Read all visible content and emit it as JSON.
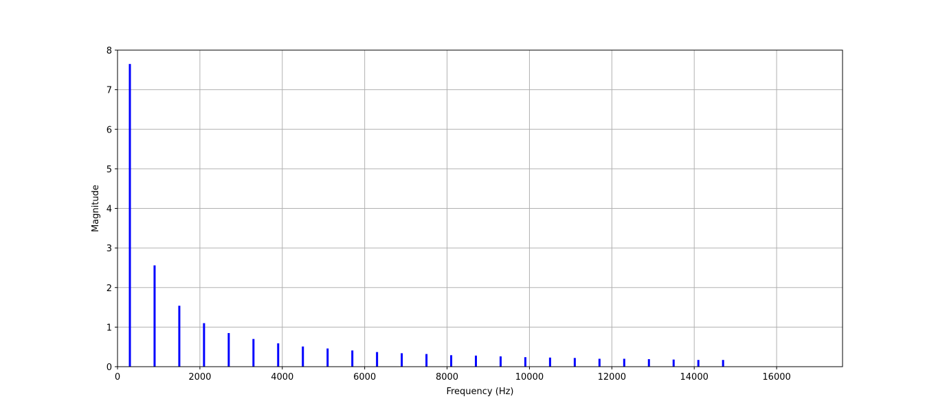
{
  "chart_data": {
    "type": "bar",
    "title": "",
    "xlabel": "Frequency (Hz)",
    "ylabel": "Magnitude",
    "xlim": [
      0,
      17600
    ],
    "ylim": [
      0,
      8
    ],
    "grid": true,
    "xticks": [
      0,
      2000,
      4000,
      6000,
      8000,
      10000,
      12000,
      14000,
      16000
    ],
    "yticks": [
      0,
      1,
      2,
      3,
      4,
      5,
      6,
      7,
      8
    ],
    "bar_color": "#0000ff",
    "series": [
      {
        "name": "spectrum",
        "x": [
          300,
          900,
          1500,
          2100,
          2700,
          3300,
          3900,
          4500,
          5100,
          5700,
          6300,
          6900,
          7500,
          8100,
          8700,
          9300,
          9900,
          10500,
          11100,
          11700,
          12300,
          12900,
          13500,
          14100,
          14700
        ],
        "values": [
          7.65,
          2.56,
          1.54,
          1.1,
          0.85,
          0.7,
          0.59,
          0.51,
          0.46,
          0.41,
          0.37,
          0.34,
          0.32,
          0.29,
          0.28,
          0.26,
          0.24,
          0.23,
          0.22,
          0.2,
          0.2,
          0.19,
          0.18,
          0.17,
          0.17
        ]
      }
    ]
  }
}
